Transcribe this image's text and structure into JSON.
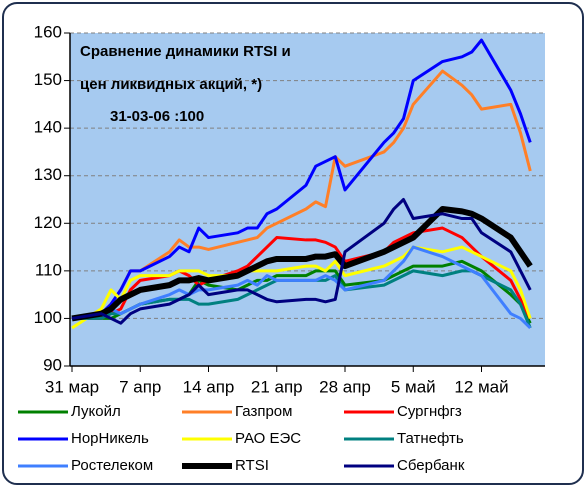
{
  "chart_data": {
    "type": "line",
    "annotations": [
      "Сравнение динамики RTSI и",
      "цен ликвидных акций, *)",
      "31-03-06 :100"
    ],
    "x": [
      0,
      3,
      4,
      5,
      6,
      7,
      10,
      11,
      12,
      13,
      14,
      17,
      18,
      19,
      20,
      21,
      24,
      25,
      26,
      27,
      28,
      32,
      33,
      34,
      35,
      38,
      40,
      41,
      42,
      45,
      46,
      47
    ],
    "xlim": [
      0,
      48
    ],
    "xticks": [
      {
        "value": 0,
        "label": "31 мар"
      },
      {
        "value": 7,
        "label": "7 апр"
      },
      {
        "value": 14,
        "label": "14 апр"
      },
      {
        "value": 21,
        "label": "21 апр"
      },
      {
        "value": 28,
        "label": "28 апр"
      },
      {
        "value": 35,
        "label": "5 май"
      },
      {
        "value": 42,
        "label": "12 май"
      }
    ],
    "ylim": [
      90,
      160
    ],
    "yticks": [
      90,
      100,
      110,
      120,
      130,
      140,
      150,
      160
    ],
    "grid": true,
    "series": [
      {
        "name": "Лукойл",
        "color": "#008000",
        "line_width": 3,
        "values": [
          100,
          100,
          100,
          101,
          102,
          103,
          104,
          104,
          105,
          108,
          107,
          106,
          107,
          108,
          108,
          109,
          109,
          110,
          110,
          110,
          107,
          108,
          109,
          110,
          111,
          111,
          112,
          111,
          110,
          105,
          103,
          99
        ]
      },
      {
        "name": "Газпром",
        "color": "#ff7f27",
        "line_width": 3,
        "values": [
          100,
          101,
          103,
          106,
          110,
          110,
          114,
          116.5,
          115,
          115,
          114.5,
          116,
          116.5,
          117,
          119,
          120,
          123,
          124.5,
          123.5,
          134,
          132,
          135,
          137,
          140,
          145,
          152,
          149,
          147,
          144,
          145,
          139,
          131
        ]
      },
      {
        "name": "Сургнфгз",
        "color": "#ff0000",
        "line_width": 3,
        "values": [
          100,
          100,
          101,
          102,
          106,
          108,
          109,
          110,
          109,
          107,
          108,
          110,
          111,
          113,
          115,
          117,
          116.5,
          116.5,
          116,
          115,
          112,
          114,
          116,
          117,
          118,
          119,
          117,
          115,
          113,
          108,
          104,
          100
        ]
      },
      {
        "name": "НорНикель",
        "color": "#0000ff",
        "line_width": 3,
        "values": [
          100,
          101,
          103,
          106,
          110,
          110,
          113,
          115,
          114,
          119,
          117,
          118,
          119,
          119,
          122,
          123,
          128,
          132,
          133,
          134,
          127,
          137,
          139,
          142,
          150,
          154,
          155,
          156,
          158.5,
          148,
          143,
          137
        ]
      },
      {
        "name": "РАО ЕЭС",
        "color": "#ffff00",
        "line_width": 3,
        "values": [
          98,
          102,
          106,
          104,
          108,
          109,
          109,
          110,
          110,
          110,
          109,
          109,
          110,
          110,
          110,
          110,
          111,
          111,
          110,
          112,
          109,
          111,
          112,
          113,
          115,
          114,
          115,
          114,
          113,
          110,
          106,
          100
        ]
      },
      {
        "name": "Татнефть",
        "color": "#008080",
        "line_width": 3,
        "values": [
          100,
          100,
          101,
          101,
          102,
          103,
          104,
          104,
          104,
          103,
          103,
          104,
          105,
          106,
          107,
          108,
          108,
          108,
          108,
          109,
          106,
          107,
          108,
          109,
          110,
          109,
          110,
          110,
          109,
          106,
          103,
          98
        ]
      },
      {
        "name": "Ростелеком",
        "color": "#3f7fff",
        "line_width": 3,
        "values": [
          100,
          101,
          102,
          101,
          102,
          103,
          105,
          106,
          105,
          106,
          106,
          107,
          108,
          107,
          109,
          108,
          108,
          108,
          109,
          108,
          106,
          108,
          110,
          112,
          115,
          113,
          111,
          110,
          109,
          101,
          100,
          98
        ]
      },
      {
        "name": "RTSI",
        "color": "#000000",
        "line_width": 6,
        "values": [
          100,
          101,
          102,
          104,
          105,
          106,
          107,
          108,
          108,
          108.5,
          108,
          109,
          110,
          111,
          112,
          112.5,
          112.5,
          113,
          113,
          113.5,
          111,
          114,
          115,
          116,
          117,
          123,
          122.5,
          122,
          121,
          117,
          114,
          111
        ]
      },
      {
        "name": "Сбербанк",
        "color": "#000080",
        "line_width": 3,
        "values": [
          100,
          101,
          100,
          99,
          101,
          102,
          103,
          104,
          105,
          107,
          105,
          106,
          106,
          105,
          104,
          103.5,
          104,
          104,
          103.5,
          104,
          114,
          120,
          123,
          125,
          121,
          122,
          121,
          121,
          118,
          114,
          110,
          106
        ]
      }
    ]
  }
}
